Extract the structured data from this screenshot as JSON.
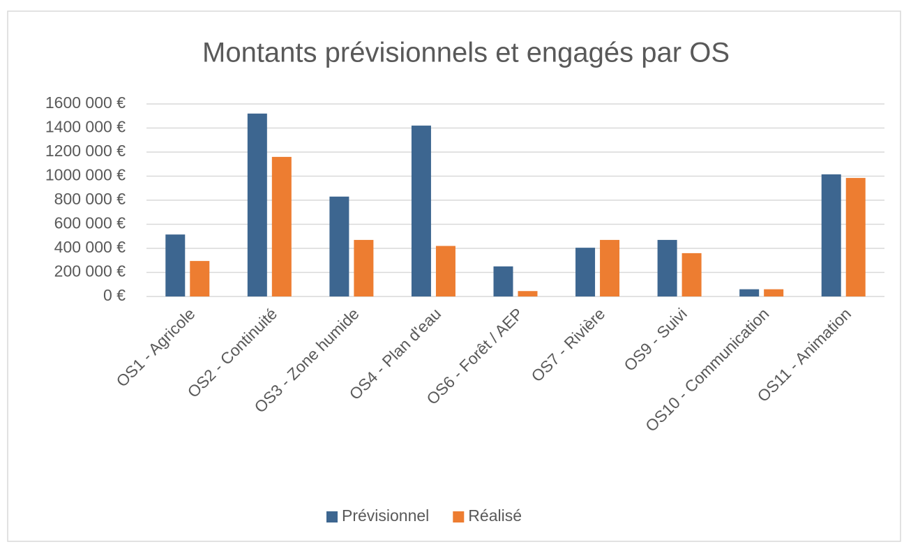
{
  "chart_data": {
    "type": "bar",
    "title": "Montants prévisionnels et engagés par OS",
    "categories": [
      "OS1 - Agricole",
      "OS2 - Continuité",
      "OS3 - Zone humide",
      "OS4 - Plan d'eau",
      "OS6 - Forêt / AEP",
      "OS7 - Rivière",
      "OS9 - Suivi",
      "OS10 - Communication",
      "OS11 - Animation"
    ],
    "series": [
      {
        "name": "Prévisionnel",
        "color": "#3d6690",
        "values": [
          515000,
          1520000,
          830000,
          1420000,
          250000,
          405000,
          470000,
          60000,
          1015000
        ]
      },
      {
        "name": "Réalisé",
        "color": "#ed7d31",
        "values": [
          295000,
          1160000,
          470000,
          420000,
          45000,
          470000,
          360000,
          60000,
          985000
        ]
      }
    ],
    "ylim": [
      0,
      1600000
    ],
    "yticks": [
      {
        "value": 0,
        "label": "0 €"
      },
      {
        "value": 200000,
        "label": "200 000 €"
      },
      {
        "value": 400000,
        "label": "400 000 €"
      },
      {
        "value": 600000,
        "label": "600 000 €"
      },
      {
        "value": 800000,
        "label": "800 000 €"
      },
      {
        "value": 1000000,
        "label": "1000 000 €"
      },
      {
        "value": 1200000,
        "label": "1200 000 €"
      },
      {
        "value": 1400000,
        "label": "1400 000 €"
      },
      {
        "value": 1600000,
        "label": "1600 000 €"
      }
    ],
    "grid": true,
    "legend": "bottom"
  }
}
